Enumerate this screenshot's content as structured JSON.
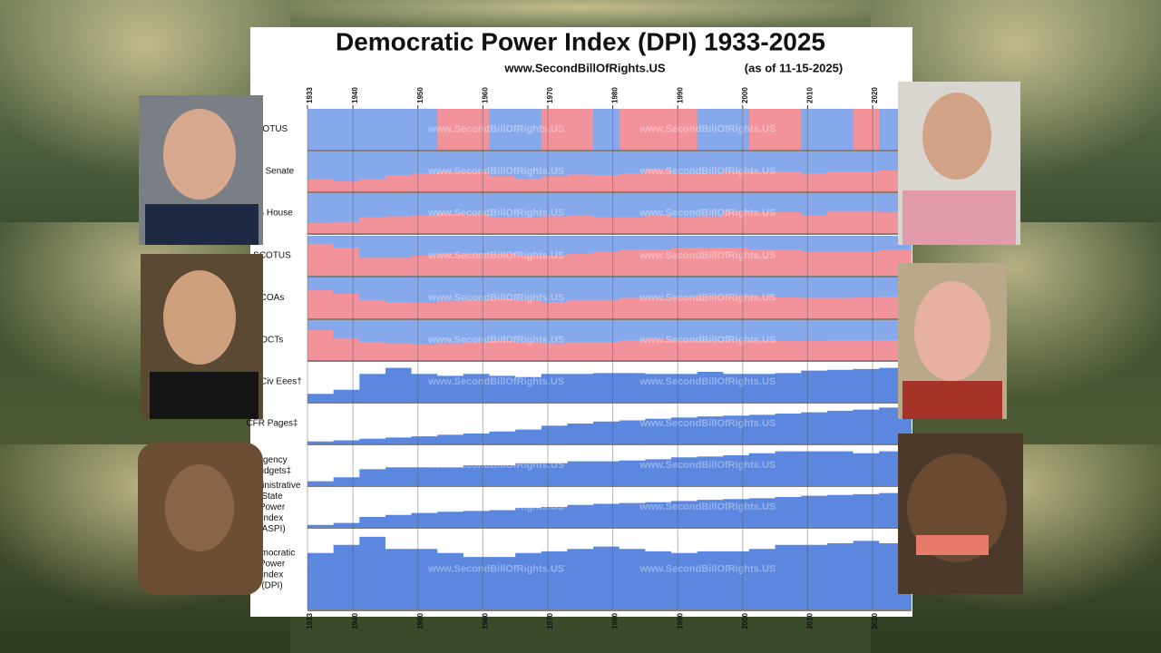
{
  "chart_data": {
    "type": "area",
    "title": "Democratic Power Index (DPI) 1933-2025",
    "subtitle": "www.SecondBillOfRights.US",
    "note": "(as of 11-15-2025)",
    "watermark": "www.SecondBillOfRights.US",
    "x": [
      1933,
      1937,
      1941,
      1945,
      1949,
      1953,
      1957,
      1961,
      1965,
      1969,
      1973,
      1977,
      1981,
      1985,
      1989,
      1993,
      1997,
      2001,
      2005,
      2009,
      2013,
      2017,
      2021,
      2025
    ],
    "xlim": [
      1933,
      2026
    ],
    "xticks": [
      1933,
      1940,
      1950,
      1960,
      1970,
      1980,
      1990,
      2000,
      2010,
      2020
    ],
    "ylim": [
      0,
      100
    ],
    "grid": true,
    "series": [
      {
        "name": "POTUS",
        "color": "#86a9ec",
        "color2": "#f2939c",
        "values": [
          100,
          100,
          100,
          100,
          100,
          0,
          0,
          100,
          100,
          0,
          0,
          100,
          0,
          0,
          0,
          100,
          100,
          0,
          0,
          100,
          100,
          0,
          100,
          0
        ]
      },
      {
        "name": "US Senate",
        "color": "#86a9ec",
        "color2": "#f2939c",
        "values": [
          70,
          75,
          70,
          60,
          55,
          50,
          50,
          62,
          68,
          62,
          58,
          60,
          55,
          45,
          55,
          55,
          50,
          50,
          50,
          55,
          50,
          50,
          47,
          47
        ]
      },
      {
        "name": "US House",
        "color": "#86a9ec",
        "color2": "#f2939c",
        "values": [
          75,
          72,
          60,
          58,
          55,
          50,
          53,
          60,
          60,
          58,
          55,
          60,
          60,
          55,
          60,
          58,
          45,
          47,
          47,
          55,
          45,
          45,
          48,
          47
        ]
      },
      {
        "name": "SCOTUS",
        "color": "#86a9ec",
        "color2": "#f2939c",
        "values": [
          20,
          30,
          55,
          55,
          50,
          45,
          45,
          45,
          50,
          50,
          45,
          40,
          35,
          35,
          30,
          30,
          30,
          35,
          35,
          40,
          40,
          40,
          35,
          35
        ]
      },
      {
        "name": "COAs",
        "color": "#86a9ec",
        "color2": "#f2939c",
        "values": [
          30,
          40,
          55,
          60,
          62,
          58,
          55,
          52,
          55,
          60,
          55,
          55,
          50,
          50,
          48,
          45,
          45,
          45,
          48,
          50,
          50,
          48,
          47,
          46
        ]
      },
      {
        "name": "DCTs",
        "color": "#86a9ec",
        "color2": "#f2939c",
        "values": [
          25,
          45,
          55,
          58,
          60,
          58,
          55,
          52,
          55,
          58,
          55,
          55,
          50,
          48,
          50,
          50,
          50,
          50,
          52,
          52,
          50,
          50,
          50,
          50
        ]
      },
      {
        "name": "Fed Civ Eees†",
        "color": "#5b87de",
        "values": [
          20,
          30,
          70,
          85,
          70,
          65,
          70,
          65,
          62,
          70,
          70,
          72,
          72,
          70,
          70,
          75,
          70,
          70,
          72,
          78,
          80,
          82,
          85,
          88
        ]
      },
      {
        "name": "CFR Pages‡",
        "color": "#5b87de",
        "values": [
          5,
          8,
          12,
          15,
          18,
          22,
          25,
          30,
          35,
          45,
          50,
          55,
          58,
          62,
          65,
          68,
          70,
          72,
          75,
          78,
          82,
          85,
          90,
          95
        ]
      },
      {
        "name": "Agency Budgets‡",
        "color": "#5b87de",
        "values": [
          10,
          20,
          40,
          45,
          45,
          45,
          50,
          50,
          55,
          55,
          60,
          60,
          62,
          65,
          70,
          72,
          75,
          80,
          85,
          85,
          85,
          80,
          85,
          85
        ]
      },
      {
        "name": "Administrative State Power Index (ASPI)",
        "color": "#5b87de",
        "values": [
          5,
          10,
          25,
          30,
          35,
          38,
          40,
          42,
          48,
          50,
          55,
          58,
          60,
          62,
          65,
          68,
          70,
          72,
          75,
          78,
          80,
          82,
          85,
          90
        ]
      },
      {
        "name": "Democratic Power Index (DPI)",
        "color": "#5b87de",
        "values": [
          70,
          80,
          90,
          75,
          75,
          70,
          65,
          65,
          70,
          72,
          75,
          78,
          75,
          72,
          70,
          72,
          72,
          75,
          80,
          80,
          82,
          85,
          82,
          80
        ]
      }
    ]
  }
}
